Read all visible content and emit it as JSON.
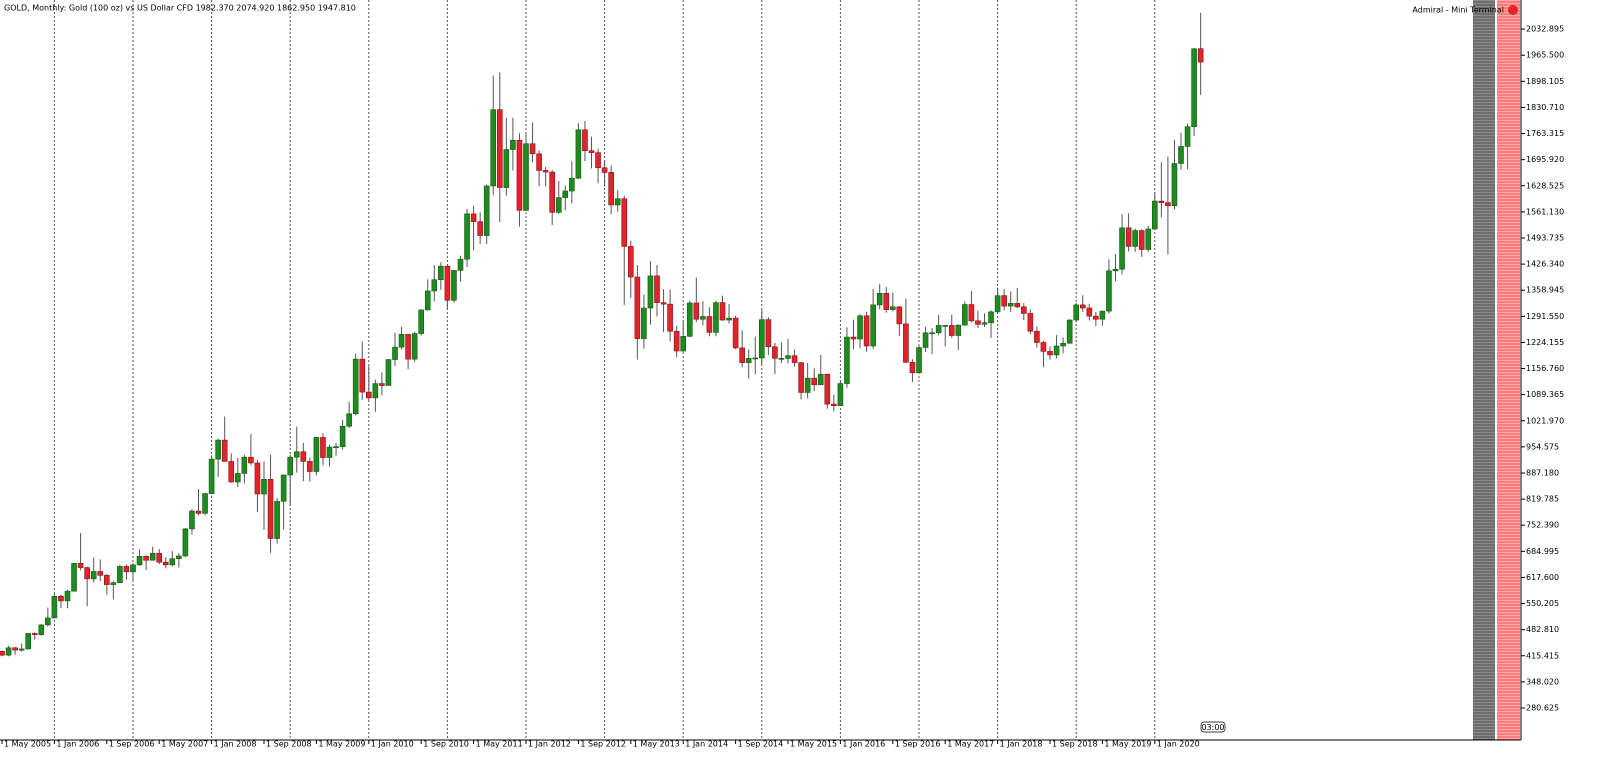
{
  "chart_data": {
    "type": "candlestick",
    "title": "GOLD, Monthly:  Gold (100 oz) vs US Dollar CFD  1982.370 2074.920 1862.950 1947.810",
    "categories": [
      "1 May 2005",
      null,
      null,
      null,
      null,
      null,
      null,
      null,
      "1 Jan 2006",
      null,
      null,
      null,
      null,
      null,
      null,
      null,
      "1 Sep 2006",
      null,
      null,
      null,
      null,
      null,
      null,
      null,
      "1 May 2007",
      null,
      null,
      null,
      null,
      null,
      null,
      null,
      "1 Jan 2008",
      null,
      null,
      null,
      null,
      null,
      null,
      null,
      "1 Sep 2008",
      null,
      null,
      null,
      null,
      null,
      null,
      null,
      "1 May 2009",
      null,
      null,
      null,
      null,
      null,
      null,
      null,
      "1 Jan 2010",
      null,
      null,
      null,
      null,
      null,
      null,
      null,
      "1 Sep 2010",
      null,
      null,
      null,
      null,
      null,
      null,
      null,
      "1 May 2011",
      null,
      null,
      null,
      null,
      null,
      null,
      null,
      "1 Jan 2012",
      null,
      null,
      null,
      null,
      null,
      null,
      null,
      "1 Sep 2012",
      null,
      null,
      null,
      null,
      null,
      null,
      null,
      "1 May 2013",
      null,
      null,
      null,
      null,
      null,
      null,
      null,
      "1 Jan 2014",
      null,
      null,
      null,
      null,
      null,
      null,
      null,
      "1 Sep 2014",
      null,
      null,
      null,
      null,
      null,
      null,
      null,
      "1 May 2015",
      null,
      null,
      null,
      null,
      null,
      null,
      null,
      "1 Jan 2016",
      null,
      null,
      null,
      null,
      null,
      null,
      null,
      "1 Sep 2016",
      null,
      null,
      null,
      null,
      null,
      null,
      null,
      "1 May 2017",
      null,
      null,
      null,
      null,
      null,
      null,
      null,
      "1 Jan 2018",
      null,
      null,
      null,
      null,
      null,
      null,
      null,
      "1 Sep 2018",
      null,
      null,
      null,
      null,
      null,
      null,
      null,
      "1 May 2019",
      null,
      null,
      null,
      null,
      null,
      null,
      null,
      "1 Jan 2020",
      null,
      null,
      null,
      null,
      null,
      null,
      null
    ],
    "open": [
      427,
      417,
      436,
      430,
      433,
      473,
      470,
      495,
      513,
      569,
      557,
      582,
      654,
      643,
      614,
      633,
      623,
      599,
      604,
      646,
      632,
      650,
      672,
      662,
      680,
      657,
      650,
      666,
      673,
      743,
      789,
      783,
      834,
      923,
      972,
      917,
      864,
      886,
      928,
      913,
      833,
      871,
      718,
      814,
      882,
      928,
      942,
      917,
      891,
      979,
      927,
      954,
      955,
      1008,
      1040,
      1181,
      1096,
      1081,
      1118,
      1113,
      1180,
      1212,
      1245,
      1181,
      1247,
      1308,
      1357,
      1386,
      1421,
      1333,
      1410,
      1439,
      1556,
      1536,
      1500,
      1628,
      1825,
      1624,
      1722,
      1746,
      1565,
      1737,
      1711,
      1668,
      1664,
      1560,
      1598,
      1615,
      1648,
      1773,
      1719,
      1714,
      1675,
      1663,
      1579,
      1595,
      1472,
      1393,
      1234,
      1313,
      1396,
      1327,
      1323,
      1253,
      1202,
      1240,
      1326,
      1284,
      1291,
      1250,
      1327,
      1282,
      1287,
      1210,
      1172,
      1183,
      1184,
      1283,
      1213,
      1183,
      1183,
      1190,
      1172,
      1095,
      1132,
      1115,
      1142,
      1065,
      1061,
      1118,
      1238,
      1233,
      1293,
      1215,
      1321,
      1351,
      1309,
      1316,
      1272,
      1173,
      1146,
      1211,
      1249,
      1249,
      1268,
      1268,
      1242,
      1269,
      1322,
      1280,
      1271,
      1275,
      1303,
      1345,
      1318,
      1325,
      1316,
      1299,
      1253,
      1224,
      1201,
      1192,
      1215,
      1222,
      1282,
      1321,
      1313,
      1292,
      1284,
      1305,
      1409,
      1413,
      1520,
      1472,
      1513,
      1464,
      1517,
      1589,
      1585,
      1577,
      1686,
      1730,
      1781,
      1982.37
    ],
    "high": [
      429,
      441,
      438,
      447,
      474,
      476,
      497,
      540,
      576,
      573,
      586,
      655,
      732,
      645,
      669,
      664,
      627,
      608,
      650,
      651,
      655,
      690,
      675,
      697,
      691,
      670,
      686,
      681,
      745,
      794,
      846,
      836,
      933,
      976,
      1033,
      938,
      926,
      934,
      988,
      921,
      917,
      935,
      823,
      883,
      934,
      1007,
      965,
      927,
      980,
      990,
      960,
      965,
      1024,
      1071,
      1195,
      1227,
      1163,
      1128,
      1147,
      1181,
      1249,
      1265,
      1246,
      1252,
      1310,
      1387,
      1424,
      1431,
      1423,
      1411,
      1448,
      1569,
      1577,
      1560,
      1632,
      1913,
      1921,
      1804,
      1804,
      1764,
      1764,
      1792,
      1720,
      1677,
      1669,
      1641,
      1629,
      1692,
      1790,
      1796,
      1755,
      1724,
      1694,
      1681,
      1617,
      1603,
      1487,
      1424,
      1348,
      1434,
      1424,
      1362,
      1361,
      1267,
      1280,
      1332,
      1392,
      1331,
      1315,
      1332,
      1345,
      1323,
      1293,
      1255,
      1206,
      1239,
      1307,
      1290,
      1223,
      1224,
      1233,
      1206,
      1174,
      1171,
      1157,
      1192,
      1144,
      1089,
      1125,
      1263,
      1283,
      1297,
      1303,
      1362,
      1375,
      1367,
      1353,
      1318,
      1337,
      1181,
      1220,
      1264,
      1261,
      1295,
      1270,
      1296,
      1270,
      1330,
      1357,
      1306,
      1299,
      1307,
      1366,
      1362,
      1356,
      1365,
      1326,
      1309,
      1265,
      1228,
      1214,
      1243,
      1237,
      1284,
      1326,
      1346,
      1324,
      1303,
      1306,
      1439,
      1452,
      1555,
      1557,
      1518,
      1516,
      1525,
      1611,
      1689,
      1704,
      1747,
      1765,
      1789,
      1984,
      2074.92
    ],
    "low": [
      414,
      414,
      418,
      426,
      432,
      457,
      467,
      491,
      513,
      538,
      538,
      582,
      636,
      543,
      605,
      608,
      573,
      561,
      603,
      612,
      608,
      648,
      637,
      661,
      652,
      641,
      646,
      643,
      670,
      728,
      778,
      779,
      834,
      877,
      917,
      862,
      851,
      860,
      907,
      786,
      740,
      681,
      705,
      741,
      803,
      888,
      866,
      865,
      881,
      907,
      904,
      932,
      948,
      1003,
      1036,
      1076,
      1075,
      1045,
      1088,
      1113,
      1163,
      1206,
      1155,
      1174,
      1242,
      1307,
      1330,
      1360,
      1309,
      1326,
      1381,
      1419,
      1462,
      1478,
      1478,
      1604,
      1535,
      1603,
      1668,
      1523,
      1564,
      1689,
      1627,
      1627,
      1527,
      1556,
      1565,
      1583,
      1646,
      1692,
      1673,
      1635,
      1626,
      1555,
      1562,
      1321,
      1339,
      1180,
      1208,
      1270,
      1291,
      1251,
      1227,
      1186,
      1200,
      1238,
      1277,
      1268,
      1240,
      1240,
      1280,
      1273,
      1206,
      1160,
      1131,
      1142,
      1167,
      1192,
      1142,
      1171,
      1170,
      1162,
      1077,
      1080,
      1099,
      1114,
      1053,
      1046,
      1060,
      1107,
      1207,
      1209,
      1200,
      1208,
      1310,
      1301,
      1304,
      1241,
      1171,
      1122,
      1145,
      1200,
      1194,
      1243,
      1214,
      1236,
      1204,
      1267,
      1276,
      1261,
      1264,
      1236,
      1302,
      1307,
      1303,
      1313,
      1282,
      1246,
      1211,
      1160,
      1180,
      1183,
      1196,
      1221,
      1276,
      1303,
      1281,
      1266,
      1267,
      1298,
      1382,
      1400,
      1459,
      1458,
      1445,
      1458,
      1516,
      1547,
      1451,
      1567,
      1670,
      1671,
      1757,
      1862.95
    ],
    "close": [
      417,
      436,
      430,
      433,
      473,
      470,
      495,
      513,
      569,
      557,
      582,
      654,
      643,
      614,
      633,
      623,
      599,
      604,
      646,
      632,
      650,
      672,
      662,
      680,
      657,
      650,
      666,
      673,
      743,
      789,
      783,
      834,
      923,
      972,
      917,
      864,
      886,
      928,
      913,
      833,
      871,
      718,
      814,
      882,
      928,
      942,
      917,
      891,
      979,
      927,
      954,
      955,
      1008,
      1040,
      1181,
      1096,
      1081,
      1118,
      1113,
      1180,
      1212,
      1245,
      1181,
      1247,
      1308,
      1357,
      1386,
      1421,
      1333,
      1410,
      1439,
      1556,
      1536,
      1500,
      1628,
      1825,
      1624,
      1722,
      1746,
      1565,
      1737,
      1711,
      1668,
      1664,
      1560,
      1598,
      1615,
      1648,
      1773,
      1719,
      1714,
      1675,
      1663,
      1579,
      1595,
      1472,
      1393,
      1234,
      1313,
      1396,
      1327,
      1323,
      1253,
      1202,
      1240,
      1326,
      1284,
      1291,
      1250,
      1327,
      1282,
      1287,
      1210,
      1172,
      1183,
      1184,
      1283,
      1213,
      1183,
      1183,
      1190,
      1172,
      1095,
      1132,
      1115,
      1142,
      1065,
      1061,
      1118,
      1238,
      1233,
      1293,
      1215,
      1321,
      1351,
      1309,
      1316,
      1272,
      1173,
      1146,
      1211,
      1249,
      1249,
      1268,
      1268,
      1242,
      1269,
      1322,
      1280,
      1271,
      1275,
      1303,
      1345,
      1318,
      1325,
      1316,
      1299,
      1253,
      1224,
      1201,
      1192,
      1215,
      1222,
      1282,
      1321,
      1313,
      1292,
      1284,
      1305,
      1409,
      1413,
      1520,
      1472,
      1513,
      1464,
      1517,
      1589,
      1585,
      1577,
      1686,
      1730,
      1781,
      1982,
      1947.81
    ],
    "up_color": "#1f8a1f",
    "down_color": "#e0242c",
    "ylim": [
      198,
      2108
    ],
    "yticks": [
      2032.895,
      {
        "value": 1965.5,
        "label": "1965.500"
      },
      1898.105,
      {
        "value": 1830.71,
        "label": "1830.710"
      },
      1763.315,
      {
        "value": 1695.92,
        "label": "1695.920"
      },
      1628.525,
      {
        "value": 1561.13,
        "label": "1561.130"
      },
      1493.735,
      {
        "value": 1426.34,
        "label": "1426.340"
      },
      1358.945,
      {
        "value": 1291.55,
        "label": "1291.550"
      },
      1224.155,
      {
        "value": 1156.76,
        "label": "1156.760"
      },
      1089.365,
      {
        "value": 1021.97,
        "label": "1021.970"
      },
      954.575,
      {
        "value": 887.18,
        "label": "887.180"
      },
      819.785,
      {
        "value": 752.39,
        "label": "752.390"
      },
      684.995,
      {
        "value": 617.6,
        "label": "617.600"
      },
      550.205,
      {
        "value": 482.81,
        "label": "482.810"
      },
      415.415,
      {
        "value": 348.02,
        "label": "348.020"
      },
      280.625
    ]
  },
  "mini_terminal": "Admiral - Mini Terminal",
  "countdown": "03:00"
}
